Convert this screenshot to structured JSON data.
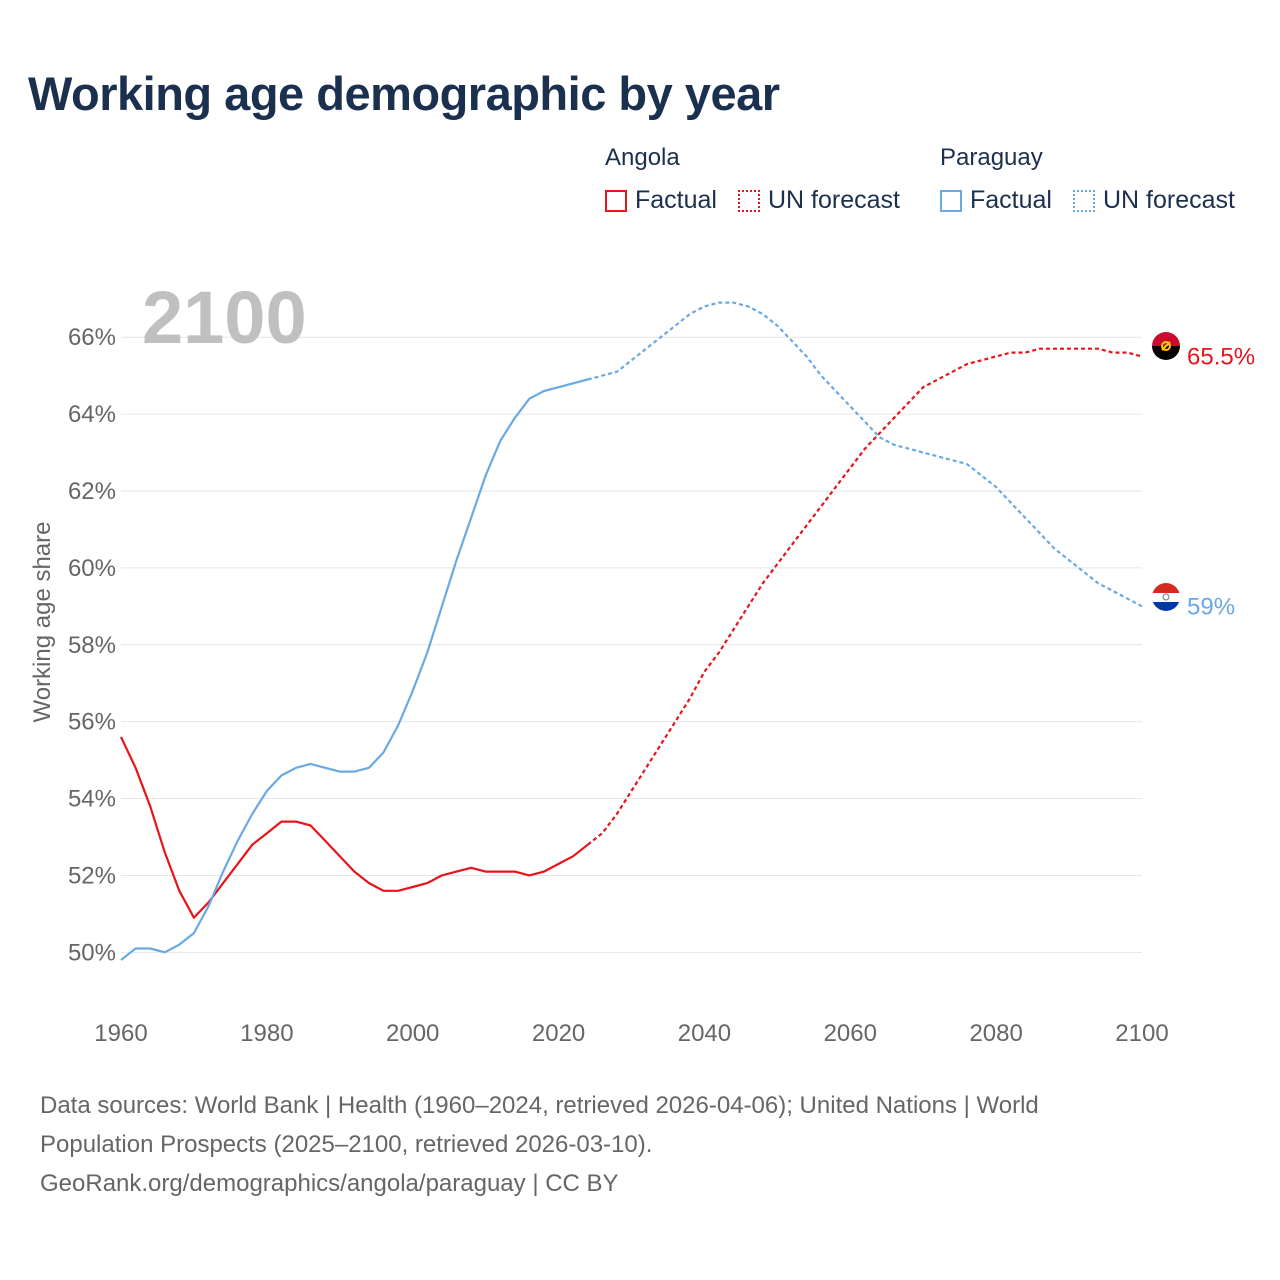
{
  "title": "Working age demographic by year",
  "legend": {
    "groups": [
      {
        "country": "Angola",
        "color": "#e8141b",
        "items": [
          "Factual",
          "UN forecast"
        ]
      },
      {
        "country": "Paraguay",
        "color": "#6aa9e3",
        "items": [
          "Factual",
          "UN forecast"
        ]
      }
    ]
  },
  "footer": {
    "line1": "Data sources: World Bank | Health (1960–2024, retrieved 2026-04-06); United Nations | World",
    "line2": "Population Prospects (2025–2100, retrieved 2026-03-10).",
    "line3": "GeoRank.org/demographics/angola/paraguay | CC BY"
  },
  "colors": {
    "angola": "#e8141b",
    "paraguay": "#6aa9e3",
    "title": "#1b2f4e",
    "axis_text": "#666666",
    "grid": "#e6e6e6",
    "year_overlay": "#c0c0c0"
  },
  "chart_data": {
    "type": "line",
    "title": "Working age demographic by year",
    "xlabel": "",
    "ylabel": "Working age share",
    "year_label": "2100",
    "xlim": [
      1960,
      2100
    ],
    "ylim": [
      48.5,
      67.8
    ],
    "xticks": [
      1960,
      1980,
      2000,
      2020,
      2040,
      2060,
      2080,
      2100
    ],
    "yticks": [
      50,
      52,
      54,
      56,
      58,
      60,
      62,
      64,
      66
    ],
    "ytick_labels": [
      "50%",
      "52%",
      "54%",
      "56%",
      "58%",
      "60%",
      "62%",
      "64%",
      "66%"
    ],
    "forecast_start": 2024,
    "series": [
      {
        "name": "Angola",
        "color": "#e8141b",
        "end_label": "65.5%",
        "points": [
          [
            1960,
            55.6
          ],
          [
            1962,
            54.8
          ],
          [
            1964,
            53.8
          ],
          [
            1966,
            52.6
          ],
          [
            1968,
            51.6
          ],
          [
            1970,
            50.9
          ],
          [
            1972,
            51.3
          ],
          [
            1974,
            51.8
          ],
          [
            1976,
            52.3
          ],
          [
            1978,
            52.8
          ],
          [
            1980,
            53.1
          ],
          [
            1982,
            53.4
          ],
          [
            1984,
            53.4
          ],
          [
            1986,
            53.3
          ],
          [
            1988,
            52.9
          ],
          [
            1990,
            52.5
          ],
          [
            1992,
            52.1
          ],
          [
            1994,
            51.8
          ],
          [
            1996,
            51.6
          ],
          [
            1998,
            51.6
          ],
          [
            2000,
            51.7
          ],
          [
            2002,
            51.8
          ],
          [
            2004,
            52.0
          ],
          [
            2006,
            52.1
          ],
          [
            2008,
            52.2
          ],
          [
            2010,
            52.1
          ],
          [
            2012,
            52.1
          ],
          [
            2014,
            52.1
          ],
          [
            2016,
            52.0
          ],
          [
            2018,
            52.1
          ],
          [
            2020,
            52.3
          ],
          [
            2022,
            52.5
          ],
          [
            2024,
            52.8
          ],
          [
            2026,
            53.1
          ],
          [
            2028,
            53.6
          ],
          [
            2030,
            54.2
          ],
          [
            2032,
            54.8
          ],
          [
            2034,
            55.4
          ],
          [
            2036,
            56.0
          ],
          [
            2038,
            56.6
          ],
          [
            2040,
            57.3
          ],
          [
            2042,
            57.8
          ],
          [
            2044,
            58.4
          ],
          [
            2046,
            59.0
          ],
          [
            2048,
            59.6
          ],
          [
            2050,
            60.1
          ],
          [
            2052,
            60.6
          ],
          [
            2054,
            61.1
          ],
          [
            2056,
            61.6
          ],
          [
            2058,
            62.1
          ],
          [
            2060,
            62.6
          ],
          [
            2062,
            63.1
          ],
          [
            2064,
            63.5
          ],
          [
            2066,
            63.9
          ],
          [
            2068,
            64.3
          ],
          [
            2070,
            64.7
          ],
          [
            2072,
            64.9
          ],
          [
            2074,
            65.1
          ],
          [
            2076,
            65.3
          ],
          [
            2078,
            65.4
          ],
          [
            2080,
            65.5
          ],
          [
            2082,
            65.6
          ],
          [
            2084,
            65.6
          ],
          [
            2086,
            65.7
          ],
          [
            2088,
            65.7
          ],
          [
            2090,
            65.7
          ],
          [
            2092,
            65.7
          ],
          [
            2094,
            65.7
          ],
          [
            2096,
            65.6
          ],
          [
            2098,
            65.6
          ],
          [
            2100,
            65.5
          ]
        ]
      },
      {
        "name": "Paraguay",
        "color": "#6aa9e3",
        "end_label": "59%",
        "points": [
          [
            1960,
            49.8
          ],
          [
            1962,
            50.1
          ],
          [
            1964,
            50.1
          ],
          [
            1966,
            50.0
          ],
          [
            1968,
            50.2
          ],
          [
            1970,
            50.5
          ],
          [
            1972,
            51.2
          ],
          [
            1974,
            52.1
          ],
          [
            1976,
            52.9
          ],
          [
            1978,
            53.6
          ],
          [
            1980,
            54.2
          ],
          [
            1982,
            54.6
          ],
          [
            1984,
            54.8
          ],
          [
            1986,
            54.9
          ],
          [
            1988,
            54.8
          ],
          [
            1990,
            54.7
          ],
          [
            1992,
            54.7
          ],
          [
            1994,
            54.8
          ],
          [
            1996,
            55.2
          ],
          [
            1998,
            55.9
          ],
          [
            2000,
            56.8
          ],
          [
            2002,
            57.8
          ],
          [
            2004,
            59.0
          ],
          [
            2006,
            60.2
          ],
          [
            2008,
            61.3
          ],
          [
            2010,
            62.4
          ],
          [
            2012,
            63.3
          ],
          [
            2014,
            63.9
          ],
          [
            2016,
            64.4
          ],
          [
            2018,
            64.6
          ],
          [
            2020,
            64.7
          ],
          [
            2022,
            64.8
          ],
          [
            2024,
            64.9
          ],
          [
            2026,
            65.0
          ],
          [
            2028,
            65.1
          ],
          [
            2030,
            65.4
          ],
          [
            2032,
            65.7
          ],
          [
            2034,
            66.0
          ],
          [
            2036,
            66.3
          ],
          [
            2038,
            66.6
          ],
          [
            2040,
            66.8
          ],
          [
            2042,
            66.9
          ],
          [
            2044,
            66.9
          ],
          [
            2046,
            66.8
          ],
          [
            2048,
            66.6
          ],
          [
            2050,
            66.3
          ],
          [
            2052,
            65.9
          ],
          [
            2054,
            65.5
          ],
          [
            2056,
            65.0
          ],
          [
            2058,
            64.6
          ],
          [
            2060,
            64.2
          ],
          [
            2062,
            63.8
          ],
          [
            2064,
            63.4
          ],
          [
            2066,
            63.2
          ],
          [
            2068,
            63.1
          ],
          [
            2070,
            63.0
          ],
          [
            2072,
            62.9
          ],
          [
            2074,
            62.8
          ],
          [
            2076,
            62.7
          ],
          [
            2078,
            62.4
          ],
          [
            2080,
            62.1
          ],
          [
            2082,
            61.7
          ],
          [
            2084,
            61.3
          ],
          [
            2086,
            60.9
          ],
          [
            2088,
            60.5
          ],
          [
            2090,
            60.2
          ],
          [
            2092,
            59.9
          ],
          [
            2094,
            59.6
          ],
          [
            2096,
            59.4
          ],
          [
            2098,
            59.2
          ],
          [
            2100,
            59.0
          ]
        ]
      }
    ]
  }
}
